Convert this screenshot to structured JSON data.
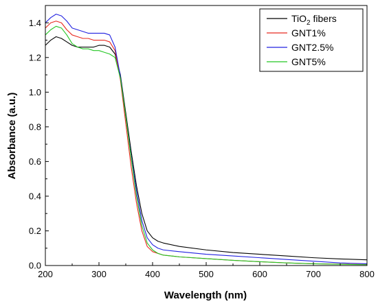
{
  "chart_data": {
    "type": "line",
    "title": "",
    "xlabel": "Wavelength (nm)",
    "ylabel": "Absorbance (a.u.)",
    "xlim": [
      200,
      800
    ],
    "ylim": [
      0.0,
      1.5
    ],
    "xticks": [
      200,
      300,
      400,
      500,
      600,
      700,
      800
    ],
    "yticks": [
      0.0,
      0.2,
      0.4,
      0.6,
      0.8,
      1.0,
      1.2,
      1.4
    ],
    "ytick_labels": [
      "0.0",
      "0.2",
      "0.4",
      "0.6",
      "0.8",
      "1.0",
      "1.2",
      "1.4"
    ],
    "grid": false,
    "legend_position": "top-right",
    "series": [
      {
        "name": "TiO2 fibers",
        "name_base": "TiO",
        "name_sub": "2",
        "name_rest": " fibers",
        "color": "#000000",
        "x": [
          200,
          210,
          220,
          230,
          240,
          250,
          260,
          270,
          280,
          290,
          300,
          310,
          320,
          330,
          340,
          350,
          360,
          370,
          380,
          390,
          400,
          410,
          420,
          450,
          500,
          550,
          600,
          650,
          700,
          750,
          800
        ],
        "y": [
          1.27,
          1.3,
          1.32,
          1.31,
          1.29,
          1.27,
          1.26,
          1.26,
          1.26,
          1.26,
          1.27,
          1.27,
          1.26,
          1.22,
          1.1,
          0.88,
          0.66,
          0.46,
          0.3,
          0.2,
          0.16,
          0.14,
          0.13,
          0.11,
          0.09,
          0.075,
          0.065,
          0.055,
          0.045,
          0.038,
          0.033
        ]
      },
      {
        "name": "GNT1%",
        "color": "#e8281e",
        "x": [
          200,
          210,
          220,
          230,
          240,
          250,
          260,
          270,
          280,
          290,
          300,
          310,
          320,
          330,
          340,
          350,
          360,
          370,
          380,
          390,
          400,
          410,
          420,
          450,
          500,
          550,
          600,
          650,
          700,
          750,
          800
        ],
        "y": [
          1.37,
          1.4,
          1.41,
          1.4,
          1.36,
          1.33,
          1.32,
          1.31,
          1.31,
          1.3,
          1.3,
          1.3,
          1.29,
          1.24,
          1.07,
          0.82,
          0.57,
          0.36,
          0.2,
          0.11,
          0.08,
          0.07,
          0.06,
          0.05,
          0.04,
          0.03,
          0.022,
          0.015,
          0.01,
          0.008,
          0.006
        ]
      },
      {
        "name": "GNT2.5%",
        "color": "#2020e0",
        "x": [
          200,
          210,
          220,
          230,
          240,
          250,
          260,
          270,
          280,
          290,
          300,
          310,
          320,
          330,
          340,
          350,
          360,
          370,
          380,
          390,
          400,
          410,
          420,
          450,
          500,
          550,
          600,
          650,
          700,
          750,
          800
        ],
        "y": [
          1.4,
          1.43,
          1.45,
          1.44,
          1.41,
          1.37,
          1.36,
          1.35,
          1.34,
          1.34,
          1.34,
          1.34,
          1.33,
          1.26,
          1.09,
          0.86,
          0.63,
          0.43,
          0.26,
          0.16,
          0.12,
          0.1,
          0.09,
          0.08,
          0.065,
          0.055,
          0.045,
          0.035,
          0.025,
          0.015,
          0.01
        ]
      },
      {
        "name": "GNT5%",
        "color": "#22c622",
        "x": [
          200,
          210,
          220,
          230,
          240,
          250,
          260,
          270,
          280,
          290,
          300,
          310,
          320,
          330,
          340,
          350,
          360,
          370,
          380,
          390,
          400,
          410,
          420,
          450,
          500,
          550,
          600,
          650,
          700,
          750,
          800
        ],
        "y": [
          1.33,
          1.36,
          1.38,
          1.37,
          1.33,
          1.28,
          1.26,
          1.25,
          1.25,
          1.24,
          1.24,
          1.23,
          1.22,
          1.2,
          1.08,
          0.86,
          0.62,
          0.4,
          0.23,
          0.13,
          0.09,
          0.07,
          0.06,
          0.05,
          0.04,
          0.03,
          0.022,
          0.015,
          0.01,
          0.007,
          0.005
        ]
      }
    ]
  }
}
